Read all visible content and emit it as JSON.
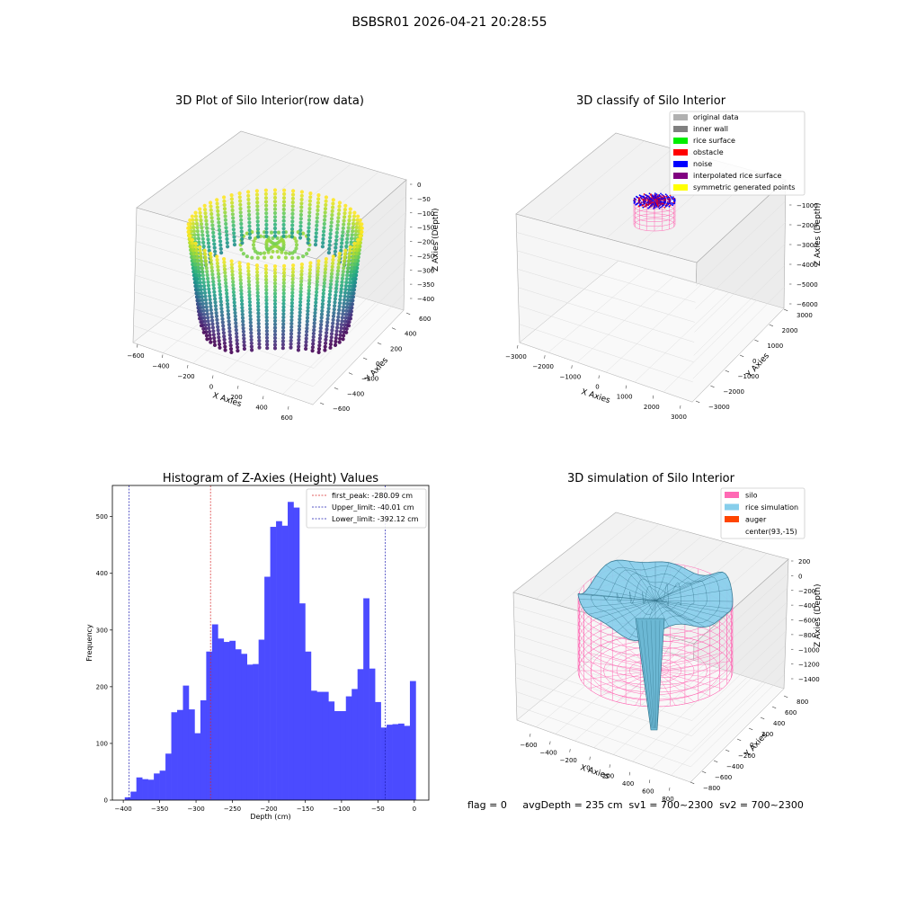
{
  "figure_title": "BSBSR01 2026-04-21 20:28:55",
  "footer": "flag = 0     avgDepth = 235 cm  sv1 = 700~2300  sv2 = 700~2300",
  "colors": {
    "hist": "#4b4bff",
    "first_peak": "#d62728",
    "limits": "#1f1fb4",
    "silo": "#ff69b4",
    "rice_simulation": "#87ceeb",
    "auger": "#ff4500",
    "pane": "#f2f2f2",
    "grid": "#d9d9d9"
  },
  "chart_data": [
    {
      "type": "scatter",
      "title": "3D Plot of Silo Interior(row data)",
      "xlabel": "X Axies",
      "ylabel": "Y Axies",
      "zlabel": "Z Axies (Depth)",
      "x_ticks": [
        "−600",
        "−400",
        "−200",
        "0",
        "200",
        "400",
        "600"
      ],
      "y_ticks": [
        "−600",
        "−400",
        "−200",
        "0",
        "200",
        "400",
        "600"
      ],
      "z_ticks": [
        "0",
        "−50",
        "−100",
        "−150",
        "−200",
        "−250",
        "−300",
        "−350",
        "−400"
      ],
      "colormap": "viridis",
      "description_values": {
        "radius_approx": 600,
        "zlim": [
          -420,
          0
        ]
      }
    },
    {
      "type": "scatter",
      "title": "3D classify of Silo Interior",
      "xlabel": "X Axies",
      "ylabel": "Y Axies",
      "zlabel": "Z Axies (Depth)",
      "x_ticks": [
        "−3000",
        "−2000",
        "−1000",
        "0",
        "1000",
        "2000",
        "3000"
      ],
      "y_ticks": [
        "−3000",
        "−2000",
        "−1000",
        "0",
        "1000",
        "2000",
        "3000"
      ],
      "z_ticks": [
        "−1000",
        "−2000",
        "−3000",
        "−4000",
        "−5000",
        "−6000"
      ],
      "legend": [
        {
          "label": "original data",
          "color": "#b0b0b0"
        },
        {
          "label": "inner wall",
          "color": "#808080"
        },
        {
          "label": "rice surface",
          "color": "#00ee00"
        },
        {
          "label": "obstacle",
          "color": "#ff0000"
        },
        {
          "label": "noise",
          "color": "#0000ff"
        },
        {
          "label": "interpolated rice surface",
          "color": "#800080"
        },
        {
          "label": "symmetric generated points",
          "color": "#ffff00"
        }
      ]
    },
    {
      "type": "bar",
      "title": "Histogram of Z-Axies (Height) Values",
      "xlabel": "Depth (cm)",
      "ylabel": "Frequency",
      "xlim": [
        -415,
        20
      ],
      "ylim": [
        0,
        555
      ],
      "x_ticks": [
        -400,
        -350,
        -300,
        -250,
        -200,
        -150,
        -100,
        -50,
        0
      ],
      "y_ticks": [
        0,
        100,
        200,
        300,
        400,
        500
      ],
      "bin_start": -398,
      "bin_width": 8,
      "values": [
        5,
        15,
        40,
        37,
        36,
        47,
        52,
        82,
        155,
        159,
        202,
        160,
        118,
        176,
        262,
        310,
        285,
        279,
        281,
        266,
        258,
        239,
        240,
        283,
        394,
        482,
        492,
        484,
        526,
        516,
        347,
        262,
        193,
        191,
        191,
        174,
        157,
        157,
        183,
        196,
        231,
        356,
        232,
        173,
        128,
        133,
        134,
        135,
        131,
        210
      ],
      "vlines": [
        {
          "x": -280.09,
          "label": "first_peak: -280.09 cm",
          "style": "first_peak"
        },
        {
          "x": -40.01,
          "label": "Upper_limit: -40.01 cm",
          "style": "limits"
        },
        {
          "x": -392.12,
          "label": "Lower_limit: -392.12 cm",
          "style": "limits"
        }
      ],
      "legend_position": "top-right"
    },
    {
      "type": "surface",
      "title": "3D simulation of Silo Interior",
      "xlabel": "X Axies",
      "ylabel": "Y Axies",
      "zlabel": "Z Axies (Depth)",
      "x_ticks": [
        "−600",
        "−400",
        "−200",
        "0",
        "200",
        "400",
        "600",
        "800"
      ],
      "y_ticks": [
        "−800",
        "−600",
        "−400",
        "−200",
        "0",
        "200",
        "400",
        "600",
        "800"
      ],
      "z_ticks": [
        "200",
        "0",
        "−200",
        "−400",
        "−600",
        "−800",
        "−1000",
        "−1200",
        "−1400"
      ],
      "legend": [
        {
          "label": "silo",
          "color": "#ff69b4"
        },
        {
          "label": "rice simulation",
          "color": "#87ceeb"
        },
        {
          "label": "auger",
          "color": "#ff4500"
        },
        {
          "label": "center(93,-15)",
          "color": "#ffffff"
        }
      ]
    }
  ]
}
